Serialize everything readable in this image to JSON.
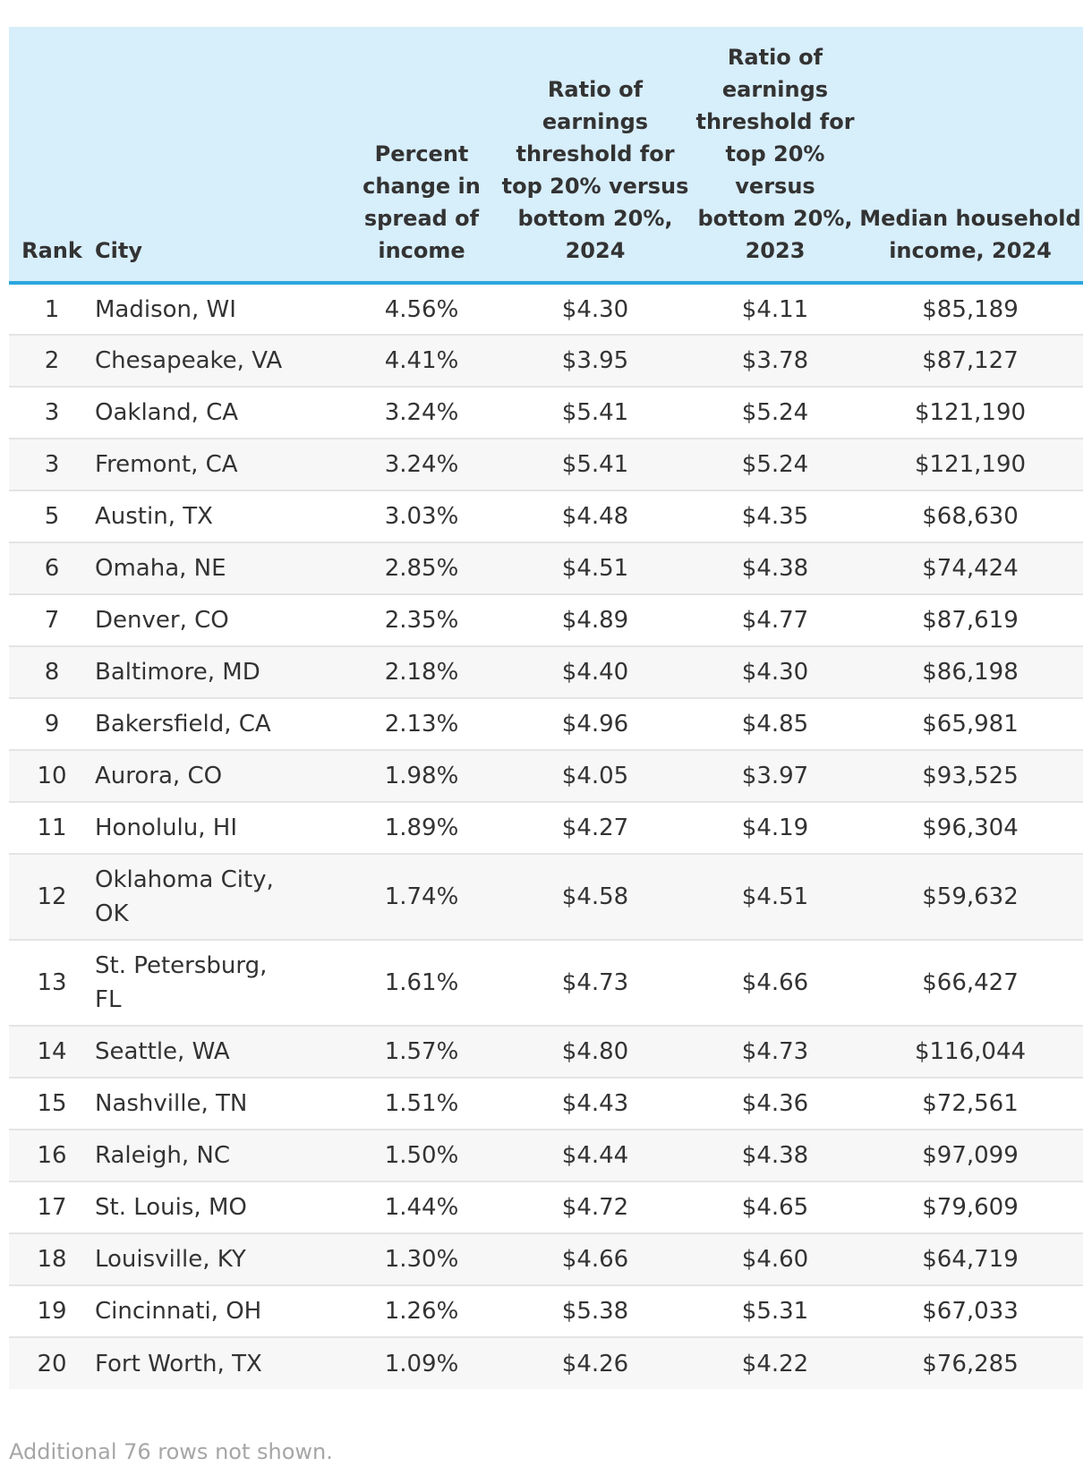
{
  "table": {
    "columns": [
      "Rank",
      "City",
      "Percent change in spread of income",
      "Ratio of earnings threshold for top 20% versus bottom 20%, 2024",
      "Ratio of earnings threshold for top 20% versus bottom 20%, 2023",
      "Median household income, 2024"
    ],
    "rows": [
      [
        "1",
        "Madison, WI",
        "4.56%",
        "$4.30",
        "$4.11",
        "$85,189"
      ],
      [
        "2",
        "Chesapeake, VA",
        "4.41%",
        "$3.95",
        "$3.78",
        "$87,127"
      ],
      [
        "3",
        "Oakland, CA",
        "3.24%",
        "$5.41",
        "$5.24",
        "$121,190"
      ],
      [
        "3",
        "Fremont, CA",
        "3.24%",
        "$5.41",
        "$5.24",
        "$121,190"
      ],
      [
        "5",
        "Austin, TX",
        "3.03%",
        "$4.48",
        "$4.35",
        "$68,630"
      ],
      [
        "6",
        "Omaha, NE",
        "2.85%",
        "$4.51",
        "$4.38",
        "$74,424"
      ],
      [
        "7",
        "Denver, CO",
        "2.35%",
        "$4.89",
        "$4.77",
        "$87,619"
      ],
      [
        "8",
        "Baltimore, MD",
        "2.18%",
        "$4.40",
        "$4.30",
        "$86,198"
      ],
      [
        "9",
        "Bakersfield, CA",
        "2.13%",
        "$4.96",
        "$4.85",
        "$65,981"
      ],
      [
        "10",
        "Aurora, CO",
        "1.98%",
        "$4.05",
        "$3.97",
        "$93,525"
      ],
      [
        "11",
        "Honolulu, HI",
        "1.89%",
        "$4.27",
        "$4.19",
        "$96,304"
      ],
      [
        "12",
        "Oklahoma City, OK",
        "1.74%",
        "$4.58",
        "$4.51",
        "$59,632"
      ],
      [
        "13",
        "St. Petersburg, FL",
        "1.61%",
        "$4.73",
        "$4.66",
        "$66,427"
      ],
      [
        "14",
        "Seattle, WA",
        "1.57%",
        "$4.80",
        "$4.73",
        "$116,044"
      ],
      [
        "15",
        "Nashville, TN",
        "1.51%",
        "$4.43",
        "$4.36",
        "$72,561"
      ],
      [
        "16",
        "Raleigh, NC",
        "1.50%",
        "$4.44",
        "$4.38",
        "$97,099"
      ],
      [
        "17",
        "St. Louis, MO",
        "1.44%",
        "$4.72",
        "$4.65",
        "$79,609"
      ],
      [
        "18",
        "Louisville, KY",
        "1.30%",
        "$4.66",
        "$4.60",
        "$64,719"
      ],
      [
        "19",
        "Cincinnati, OH",
        "1.26%",
        "$5.38",
        "$5.31",
        "$67,033"
      ],
      [
        "20",
        "Fort Worth, TX",
        "1.09%",
        "$4.26",
        "$4.22",
        "$76,285"
      ]
    ],
    "footnote": "Additional 76 rows not shown."
  },
  "colors": {
    "header_bg": "#d7eefb",
    "header_rule": "#2aa6df",
    "stripe": "#f7f7f7",
    "footnote": "#a6a6a6"
  }
}
